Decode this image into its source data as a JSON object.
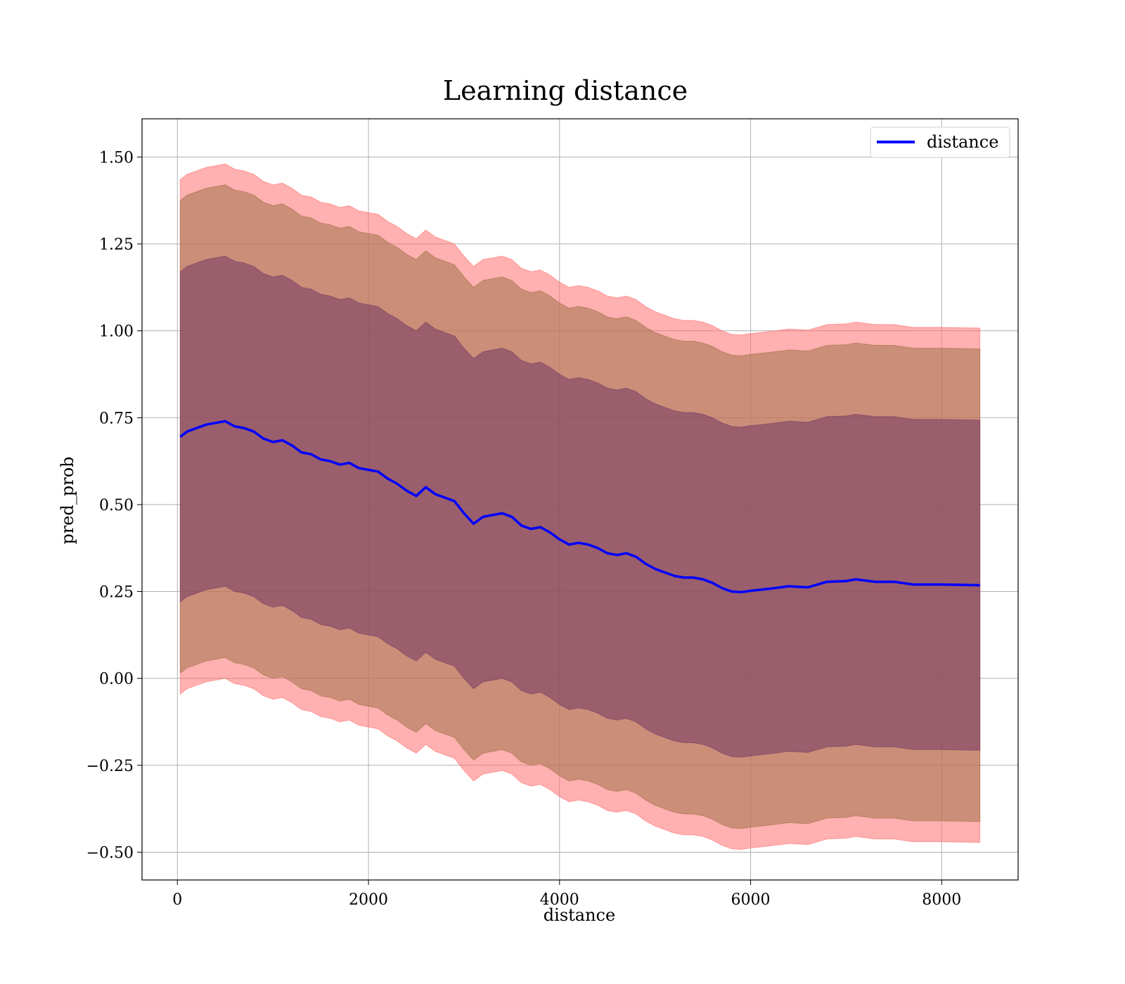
{
  "chart_data": {
    "type": "line",
    "title": "Learning distance",
    "xlabel": "distance",
    "ylabel": "pred_prob",
    "xlim": [
      -370,
      8800
    ],
    "ylim": [
      -0.58,
      1.61
    ],
    "xticks": [
      0,
      2000,
      4000,
      6000,
      8000
    ],
    "xtick_labels": [
      "0",
      "2000",
      "4000",
      "6000",
      "8000"
    ],
    "yticks": [
      -0.5,
      -0.25,
      0.0,
      0.25,
      0.5,
      0.75,
      1.0,
      1.25,
      1.5
    ],
    "ytick_labels": [
      "−0.50",
      "−0.25",
      "0.00",
      "0.25",
      "0.50",
      "0.75",
      "1.00",
      "1.25",
      "1.50"
    ],
    "grid": true,
    "legend": {
      "position": "top-right",
      "entries": [
        "distance"
      ]
    },
    "colors": {
      "line": "#0000ff",
      "band_outer": "#ff6f6f",
      "band_middle": "#a0724a",
      "band_inner": "#7a3d66"
    },
    "x": [
      30,
      100,
      200,
      300,
      400,
      500,
      600,
      700,
      800,
      900,
      1000,
      1100,
      1200,
      1300,
      1400,
      1500,
      1600,
      1700,
      1800,
      1900,
      2000,
      2100,
      2200,
      2300,
      2400,
      2500,
      2600,
      2700,
      2800,
      2900,
      3000,
      3100,
      3200,
      3300,
      3400,
      3500,
      3600,
      3700,
      3800,
      3900,
      4000,
      4100,
      4200,
      4300,
      4400,
      4500,
      4600,
      4700,
      4800,
      4900,
      5000,
      5100,
      5200,
      5300,
      5400,
      5500,
      5600,
      5700,
      5800,
      5900,
      6000,
      6200,
      6400,
      6600,
      6800,
      7000,
      7100,
      7300,
      7500,
      7700,
      8000,
      8400
    ],
    "series": [
      {
        "name": "distance",
        "values": [
          0.695,
          0.71,
          0.72,
          0.73,
          0.735,
          0.74,
          0.725,
          0.72,
          0.71,
          0.69,
          0.68,
          0.685,
          0.67,
          0.65,
          0.645,
          0.63,
          0.625,
          0.615,
          0.62,
          0.605,
          0.6,
          0.595,
          0.575,
          0.56,
          0.54,
          0.525,
          0.55,
          0.53,
          0.52,
          0.51,
          0.475,
          0.445,
          0.465,
          0.47,
          0.475,
          0.465,
          0.44,
          0.43,
          0.435,
          0.42,
          0.4,
          0.385,
          0.39,
          0.385,
          0.375,
          0.36,
          0.355,
          0.36,
          0.35,
          0.33,
          0.315,
          0.305,
          0.295,
          0.29,
          0.29,
          0.285,
          0.275,
          0.26,
          0.25,
          0.248,
          0.252,
          0.258,
          0.265,
          0.262,
          0.278,
          0.28,
          0.285,
          0.278,
          0.278,
          0.27,
          0.27,
          0.268
        ]
      }
    ],
    "bands": [
      {
        "name": "outer",
        "offset": 0.74
      },
      {
        "name": "middle",
        "offset": 0.68
      },
      {
        "name": "inner",
        "offset": 0.475
      }
    ]
  }
}
